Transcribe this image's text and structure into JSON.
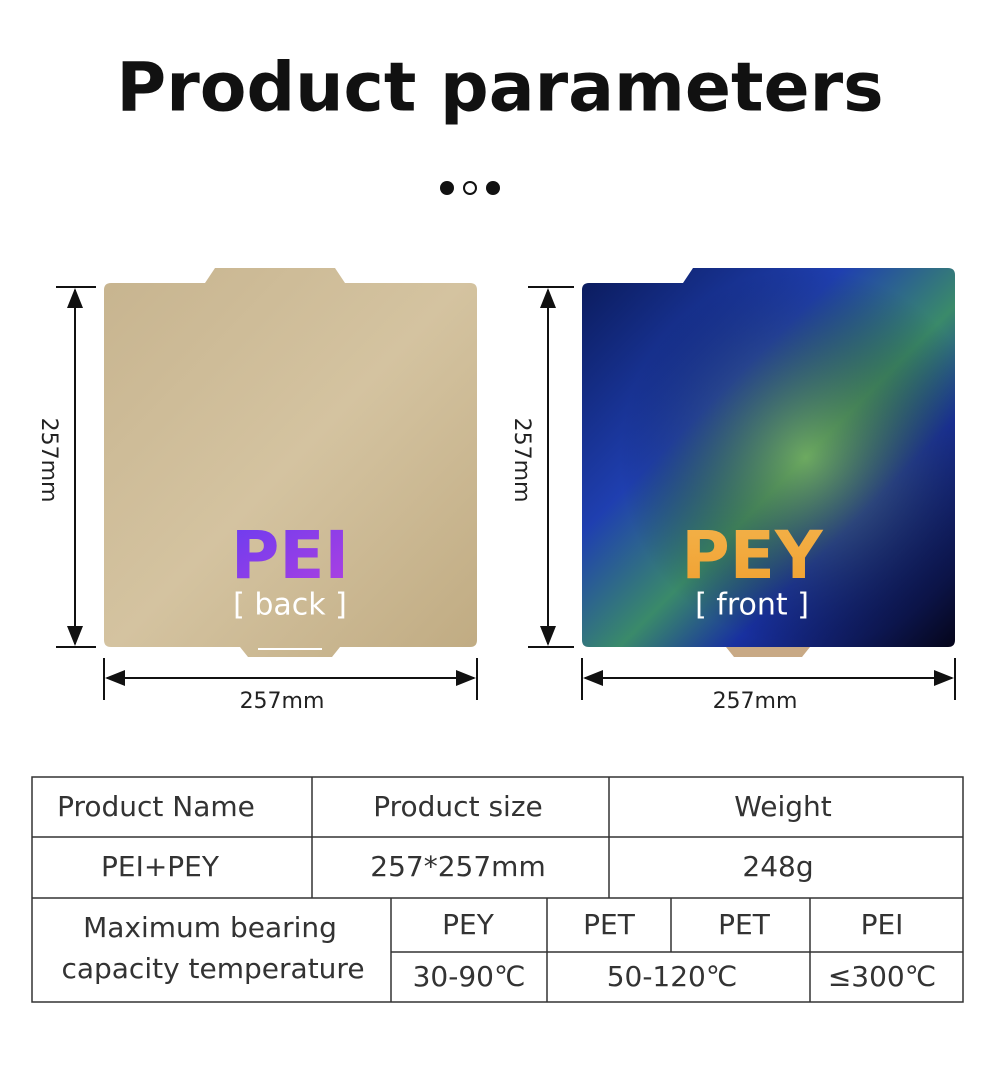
{
  "title": "Product parameters",
  "panels": [
    {
      "name": "PEI",
      "side": "[ back ]",
      "height_label": "257mm",
      "width_label": "257mm"
    },
    {
      "name": "PEY",
      "side": "[ front  ]",
      "height_label": "257mm",
      "width_label": "257mm"
    }
  ],
  "table": {
    "header": [
      "Product Name",
      "Product size",
      "Weight"
    ],
    "row": [
      "PEI+PEY",
      "257*257mm",
      "248g"
    ],
    "temperature_label": [
      "Maximum bearing",
      "capacity temperature"
    ],
    "materials": [
      "PEY",
      "PET",
      "PET",
      "PEI"
    ],
    "temperatures": [
      "30-90℃",
      "50-120℃",
      "≤300℃"
    ]
  }
}
